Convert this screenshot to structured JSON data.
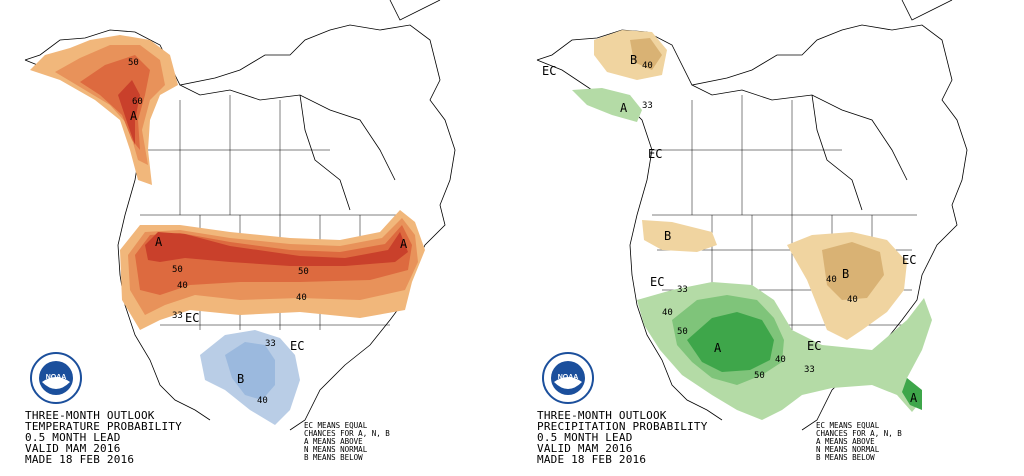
{
  "panels": [
    {
      "title_lines": [
        "THREE-MONTH OUTLOOK",
        "TEMPERATURE PROBABILITY",
        "0.5 MONTH LEAD",
        "VALID MAM 2016",
        "MADE 18 FEB 2016"
      ],
      "legend_lines": [
        "EC MEANS EQUAL",
        "CHANCES FOR A, N, B",
        "A MEANS ABOVE",
        "N MEANS NORMAL",
        "B MEANS BELOW"
      ],
      "map_labels": {
        "contour_50_ak": "50",
        "contour_60_ak": "60",
        "above_ak": "A",
        "above_nw": "A",
        "above_ne": "A",
        "contour_50_w": "50",
        "contour_40_w": "40",
        "contour_33_w": "33",
        "contour_50_c": "50",
        "contour_40_c": "40",
        "ec": "EC",
        "ec_2": "EC",
        "contour_33_b": "33",
        "below": "B",
        "contour_40_b": "40"
      },
      "colors": {
        "above_33": "#f1b77b",
        "above_40": "#e8925a",
        "above_50": "#dd6a3f",
        "above_60": "#c9402b",
        "below_33": "#b9cde6",
        "below_40": "#9bb9de"
      }
    },
    {
      "title_lines": [
        "THREE-MONTH OUTLOOK",
        "PRECIPITATION PROBABILITY",
        "0.5 MONTH LEAD",
        "VALID MAM 2016",
        "MADE 18 FEB 2016"
      ],
      "legend_lines": [
        "EC MEANS EQUAL",
        "CHANCES FOR A, N, B",
        "A MEANS ABOVE",
        "N MEANS NORMAL",
        "B MEANS BELOW"
      ],
      "map_labels": {
        "ec_nw": "EC",
        "below_ak": "B",
        "contour_40_ak": "40",
        "contour_33_ak": "33",
        "above_ak": "A",
        "ec_bc": "EC",
        "below_nw": "B",
        "ec_w": "EC",
        "contour_33_w": "33",
        "contour_40_sw": "40",
        "contour_50_sw": "50",
        "above_sw": "A",
        "contour_40_s": "40",
        "contour_33_s": "33",
        "contour_50_s": "50",
        "below_gl": "B",
        "contour_40_gl": "40",
        "contour_40_gl2": "40",
        "ec_c": "EC",
        "ec_e": "EC",
        "above_fl": "A"
      },
      "colors": {
        "above_33": "#b4dba6",
        "above_40": "#7fc47a",
        "above_50": "#3ea64a",
        "below_33": "#f0d4a0",
        "below_40": "#d9b274"
      }
    }
  ],
  "logo": {
    "text": "NOAA",
    "ring_color": "#1b4f9c"
  }
}
